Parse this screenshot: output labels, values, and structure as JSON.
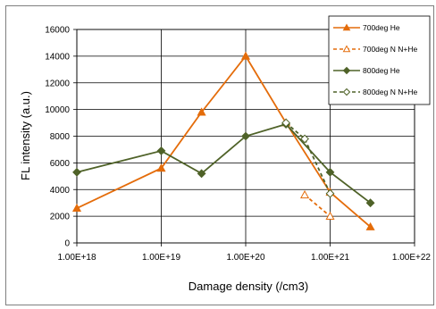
{
  "chart_data": {
    "type": "line",
    "xscale": "log",
    "xlabel": "Damage density (/cm3)",
    "ylabel": "FL intensity (a.u.)",
    "xlim": [
      1e+18,
      1e+22
    ],
    "ylim": [
      0,
      16000
    ],
    "x_ticks": [
      "1.00E+18",
      "1.00E+19",
      "1.00E+20",
      "1.00E+21",
      "1.00E+22"
    ],
    "y_ticks": [
      "0",
      "2000",
      "4000",
      "6000",
      "8000",
      "10000",
      "12000",
      "14000",
      "16000"
    ],
    "grid": "vertical and horizontal major gridlines",
    "legend_position": "top-right",
    "series": [
      {
        "name": "700deg He",
        "color": "#E46C0A",
        "line": "solid",
        "marker": "filled-triangle",
        "points": [
          [
            1e+18,
            2600
          ],
          [
            1e+19,
            5600
          ],
          [
            3e+19,
            9800
          ],
          [
            1e+20,
            14000
          ],
          [
            3e+20,
            9000
          ],
          [
            1e+21,
            3800
          ],
          [
            3e+21,
            1200
          ]
        ]
      },
      {
        "name": "700deg N N+He",
        "color": "#E46C0A",
        "line": "dashed",
        "marker": "open-triangle",
        "points": [
          [
            5e+20,
            3600
          ],
          [
            1e+21,
            2000
          ]
        ]
      },
      {
        "name": "800deg He",
        "color": "#4F6228",
        "line": "solid",
        "marker": "filled-diamond",
        "points": [
          [
            1e+18,
            5300
          ],
          [
            1e+19,
            6900
          ],
          [
            3e+19,
            5200
          ],
          [
            1e+20,
            8000
          ],
          [
            3e+20,
            8900
          ],
          [
            1e+21,
            5300
          ],
          [
            3e+21,
            3000
          ]
        ]
      },
      {
        "name": "800deg N N+He",
        "color": "#4F6228",
        "line": "dashed",
        "marker": "open-diamond",
        "points": [
          [
            3e+20,
            9000
          ],
          [
            5e+20,
            7800
          ],
          [
            1e+21,
            3700
          ]
        ]
      }
    ]
  }
}
